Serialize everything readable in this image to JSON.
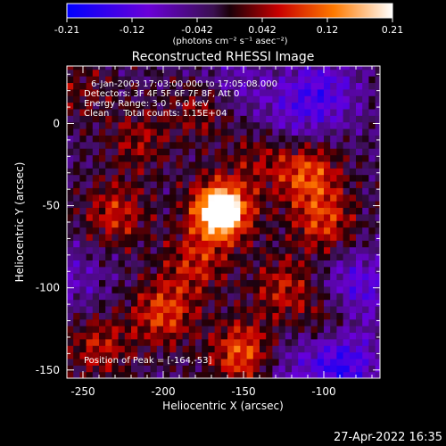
{
  "colorbar": {
    "tick_labels": [
      "-0.21",
      "-0.12",
      "-0.042",
      "0.042",
      "0.12",
      "0.21"
    ],
    "range": [
      -0.21,
      0.21
    ],
    "units_label": "(photons cm⁻² s⁻¹ asec⁻²)"
  },
  "footer": {
    "timestamp": "27-Apr-2022 16:35"
  },
  "chart_data": {
    "type": "heatmap",
    "title": "Reconstructed RHESSI Image",
    "xlabel": "Heliocentric X (arcsec)",
    "ylabel": "Heliocentric Y (arcsec)",
    "xlim": [
      -260,
      -65
    ],
    "ylim": [
      -155,
      35
    ],
    "x_ticks": [
      -250,
      -200,
      -150,
      -100
    ],
    "y_ticks": [
      -150,
      -100,
      -50,
      0
    ],
    "annotations": [
      "6-Jan-2003 17:03:00.000 to 17:05:08.000",
      "Detectors: 3F 4F 5F 6F 7F 8F, Att 0",
      "Energy Range: 3.0 - 6.0 keV",
      "Clean     Total counts: 1.15E+04"
    ],
    "peak_label": "Position of Peak = [-164,-53]",
    "peak": [
      -164,
      -53
    ],
    "peak_value": 0.21,
    "background_value": -0.03,
    "blobs": [
      {
        "x": -164,
        "y": -53,
        "v": 0.2
      },
      {
        "x": -150,
        "y": -140,
        "v": 0.15
      },
      {
        "x": -110,
        "y": -30,
        "v": 0.13
      },
      {
        "x": -100,
        "y": -60,
        "v": 0.11
      },
      {
        "x": -230,
        "y": -55,
        "v": 0.1
      },
      {
        "x": -200,
        "y": -115,
        "v": 0.12
      },
      {
        "x": -175,
        "y": 10,
        "v": 0.08
      },
      {
        "x": -125,
        "y": -100,
        "v": 0.09
      },
      {
        "x": -240,
        "y": -135,
        "v": 0.09
      },
      {
        "x": -95,
        "y": -120,
        "v": 0.08
      },
      {
        "x": -215,
        "y": -10,
        "v": 0.07
      },
      {
        "x": -140,
        "y": -20,
        "v": 0.06
      },
      {
        "x": -180,
        "y": -85,
        "v": 0.09
      },
      {
        "x": -250,
        "y": 20,
        "v": 0.05
      }
    ],
    "dips": [
      {
        "x": -100,
        "y": 20,
        "v": -0.09
      },
      {
        "x": -90,
        "y": -145,
        "v": -0.14
      },
      {
        "x": -160,
        "y": 25,
        "v": -0.06
      },
      {
        "x": -80,
        "y": -100,
        "v": -0.1
      },
      {
        "x": -130,
        "y": -150,
        "v": -0.05
      },
      {
        "x": -255,
        "y": -95,
        "v": -0.05
      },
      {
        "x": -120,
        "y": 5,
        "v": -0.06
      }
    ]
  }
}
